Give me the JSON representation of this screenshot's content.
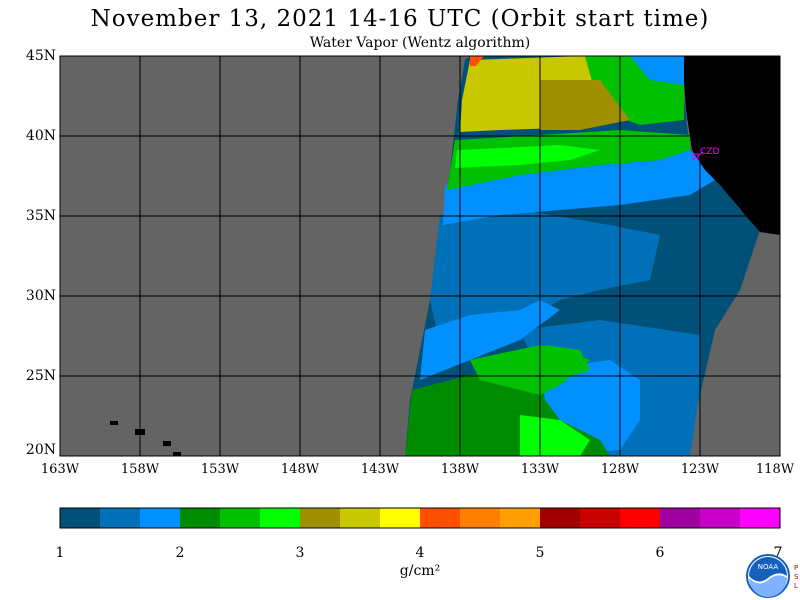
{
  "title": "November 13, 2021  14-16 UTC  (Orbit start time)",
  "subtitle": "Water Vapor (Wentz algorithm)",
  "lat_labels": [
    "45N",
    "40N",
    "35N",
    "30N",
    "25N",
    "20N"
  ],
  "lon_labels": [
    "163W",
    "158W",
    "153W",
    "148W",
    "143W",
    "138W",
    "133W",
    "128W",
    "123W",
    "118W"
  ],
  "station_label": "CZD",
  "colorbar": {
    "ticks": [
      "1",
      "2",
      "3",
      "4",
      "5",
      "6",
      "7"
    ],
    "units": "g/cm²",
    "colors": [
      "#005078",
      "#0070b8",
      "#0090ff",
      "#008c00",
      "#00c000",
      "#00ff00",
      "#a09000",
      "#c8c800",
      "#ffff00",
      "#ff5000",
      "#ff8000",
      "#ffa000",
      "#a00000",
      "#c80000",
      "#ff0000",
      "#a000a0",
      "#c800c8",
      "#ff00ff"
    ]
  },
  "colors": {
    "no_data": "#646464",
    "land": "#000000",
    "grid": "#000000"
  },
  "logos": {
    "noaa": "NOAA",
    "psl": "PSL"
  }
}
